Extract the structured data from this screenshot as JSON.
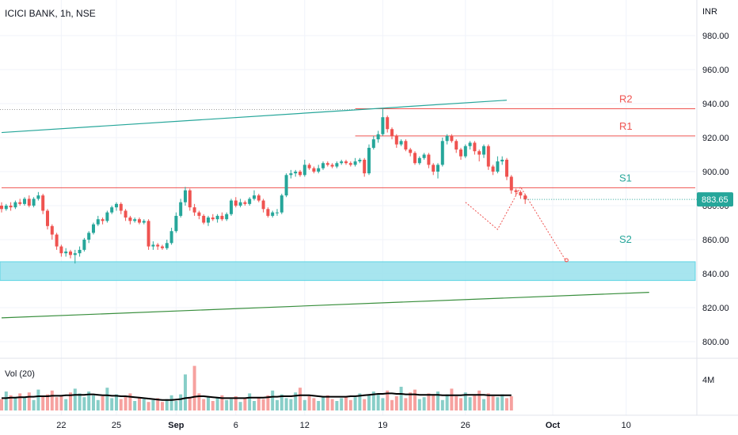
{
  "header": {
    "title": "ICICI BANK, 1h, NSE"
  },
  "colors": {
    "up": "#26a69a",
    "down": "#ef5350",
    "resistance": "#ef5350",
    "support_label": "#26a69a",
    "support_zone": "#9ee3ee",
    "channel_upper": "#26a69a",
    "channel_lower": "#388e3c",
    "projection": "#ef5350",
    "price_badge": "#26a69a",
    "volume_ma": "#000000",
    "grid": "#f0f3fa",
    "axis_text": "#131722"
  },
  "icons": {
    "price_badge": "price-tag-icon"
  },
  "chart_data": {
    "type": "candlestick",
    "title": "ICICI BANK, 1h, NSE",
    "currency": "INR",
    "y_ticks": [
      "980.00",
      "960.00",
      "940.00",
      "920.00",
      "900.00",
      "880.00",
      "860.00",
      "840.00",
      "820.00",
      "800.00"
    ],
    "y_tick_values": [
      980,
      960,
      940,
      920,
      900,
      880,
      860,
      840,
      820,
      800
    ],
    "ylim": [
      795,
      995
    ],
    "x_ticks": [
      "22",
      "25",
      "Sep",
      "6",
      "12",
      "19",
      "26",
      "Oct",
      "10"
    ],
    "x_tick_index": [
      13,
      25,
      38,
      51,
      66,
      83,
      101,
      120,
      136
    ],
    "last_price": "883.65",
    "last_price_value": 883.65,
    "levels": [
      {
        "label": "R2",
        "value": 937,
        "start_index": 77
      },
      {
        "label": "R1",
        "value": 921,
        "start_index": 77
      },
      {
        "label": "S1",
        "value": 890.5,
        "start_index": 0
      },
      {
        "label": "S2",
        "value": 847,
        "start_index": 123
      }
    ],
    "support_zone": [
      836,
      847
    ],
    "channel_upper": {
      "from": [
        0,
        923
      ],
      "to": [
        110,
        942
      ]
    },
    "channel_lower": {
      "from": [
        0,
        814
      ],
      "to": [
        141,
        829
      ]
    },
    "projection_path": [
      [
        101,
        882
      ],
      [
        108,
        866
      ],
      [
        113,
        891
      ],
      [
        123,
        847
      ]
    ],
    "candles": [
      [
        880,
        878,
        882,
        876
      ],
      [
        878,
        880,
        881,
        877
      ],
      [
        880,
        879,
        882,
        877
      ],
      [
        879,
        882,
        883,
        878
      ],
      [
        882,
        881,
        884,
        880
      ],
      [
        881,
        884,
        885,
        880
      ],
      [
        884,
        880,
        886,
        879
      ],
      [
        880,
        884,
        885,
        879
      ],
      [
        884,
        886,
        888,
        883
      ],
      [
        886,
        877,
        887,
        875
      ],
      [
        877,
        868,
        878,
        866
      ],
      [
        868,
        863,
        869,
        860
      ],
      [
        863,
        856,
        864,
        854
      ],
      [
        856,
        852,
        857,
        850
      ],
      [
        852,
        853,
        855,
        850
      ],
      [
        853,
        851,
        854,
        849
      ],
      [
        851,
        852,
        854,
        846
      ],
      [
        852,
        854,
        856,
        850
      ],
      [
        854,
        860,
        861,
        853
      ],
      [
        860,
        864,
        865,
        858
      ],
      [
        864,
        869,
        870,
        863
      ],
      [
        869,
        872,
        874,
        868
      ],
      [
        872,
        871,
        873,
        869
      ],
      [
        871,
        876,
        877,
        870
      ],
      [
        876,
        879,
        880,
        875
      ],
      [
        879,
        881,
        882,
        877
      ],
      [
        881,
        877,
        882,
        875
      ],
      [
        877,
        873,
        878,
        871
      ],
      [
        873,
        871,
        874,
        869
      ],
      [
        871,
        872,
        873,
        870
      ],
      [
        872,
        870,
        873,
        869
      ],
      [
        870,
        871,
        872,
        869
      ],
      [
        871,
        856,
        872,
        854
      ],
      [
        856,
        857,
        859,
        854
      ],
      [
        857,
        856,
        858,
        854
      ],
      [
        856,
        855,
        857,
        854
      ],
      [
        855,
        858,
        860,
        854
      ],
      [
        858,
        865,
        867,
        857
      ],
      [
        865,
        874,
        876,
        864
      ],
      [
        874,
        882,
        884,
        873
      ],
      [
        882,
        889,
        891,
        880
      ],
      [
        889,
        879,
        890,
        877
      ],
      [
        879,
        876,
        881,
        874
      ],
      [
        876,
        874,
        877,
        872
      ],
      [
        874,
        870,
        875,
        869
      ],
      [
        870,
        873,
        874,
        868
      ],
      [
        873,
        872,
        875,
        871
      ],
      [
        872,
        874,
        875,
        870
      ],
      [
        874,
        872,
        876,
        871
      ],
      [
        872,
        875,
        876,
        871
      ],
      [
        875,
        883,
        884,
        874
      ],
      [
        883,
        880,
        885,
        879
      ],
      [
        880,
        882,
        884,
        879
      ],
      [
        882,
        881,
        883,
        880
      ],
      [
        881,
        884,
        885,
        880
      ],
      [
        884,
        886,
        889,
        883
      ],
      [
        886,
        883,
        887,
        882
      ],
      [
        883,
        878,
        884,
        876
      ],
      [
        878,
        874,
        879,
        873
      ],
      [
        874,
        876,
        877,
        873
      ],
      [
        876,
        876,
        878,
        874
      ],
      [
        876,
        886,
        887,
        875
      ],
      [
        886,
        898,
        899,
        885
      ],
      [
        898,
        899,
        901,
        896
      ],
      [
        899,
        900,
        901,
        897
      ],
      [
        900,
        898,
        901,
        897
      ],
      [
        898,
        904,
        907,
        897
      ],
      [
        904,
        902,
        905,
        901
      ],
      [
        902,
        900,
        903,
        899
      ],
      [
        900,
        902,
        904,
        899
      ],
      [
        902,
        905,
        906,
        901
      ],
      [
        905,
        904,
        906,
        903
      ],
      [
        904,
        903,
        905,
        902
      ],
      [
        903,
        905,
        906,
        902
      ],
      [
        905,
        906,
        907,
        904
      ],
      [
        906,
        905,
        907,
        904
      ],
      [
        905,
        904,
        906,
        903
      ],
      [
        904,
        906,
        908,
        903
      ],
      [
        906,
        907,
        908,
        905
      ],
      [
        907,
        899,
        908,
        897
      ],
      [
        899,
        914,
        916,
        898
      ],
      [
        914,
        919,
        921,
        913
      ],
      [
        919,
        922,
        924,
        917
      ],
      [
        922,
        932,
        937,
        921
      ],
      [
        932,
        925,
        933,
        923
      ],
      [
        925,
        921,
        926,
        919
      ],
      [
        921,
        916,
        922,
        914
      ],
      [
        916,
        918,
        919,
        915
      ],
      [
        918,
        913,
        919,
        912
      ],
      [
        913,
        911,
        914,
        909
      ],
      [
        911,
        905,
        912,
        904
      ],
      [
        905,
        908,
        909,
        904
      ],
      [
        908,
        910,
        911,
        907
      ],
      [
        910,
        904,
        911,
        902
      ],
      [
        904,
        900,
        905,
        898
      ],
      [
        900,
        904,
        905,
        896
      ],
      [
        904,
        918,
        920,
        903
      ],
      [
        918,
        921,
        922,
        916
      ],
      [
        921,
        918,
        922,
        917
      ],
      [
        918,
        913,
        919,
        911
      ],
      [
        913,
        909,
        914,
        907
      ],
      [
        909,
        915,
        916,
        908
      ],
      [
        915,
        917,
        918,
        913
      ],
      [
        917,
        912,
        918,
        910
      ],
      [
        912,
        910,
        913,
        906
      ],
      [
        910,
        915,
        916,
        908
      ],
      [
        915,
        903,
        916,
        901
      ],
      [
        903,
        900,
        904,
        898
      ],
      [
        900,
        906,
        909,
        899
      ],
      [
        906,
        907,
        909,
        904
      ],
      [
        907,
        897,
        908,
        895
      ],
      [
        897,
        889,
        898,
        887
      ],
      [
        889,
        888,
        890,
        886
      ],
      [
        888,
        886,
        889,
        884
      ],
      [
        886,
        883.65,
        887,
        881
      ]
    ],
    "volume_label": "Vol (20)",
    "volume_tick": "4M",
    "volume_tick_value": 4000000,
    "volume_max": 5000000,
    "volumes": [
      1.2,
      2.0,
      1.6,
      1.3,
      1.8,
      1.4,
      1.9,
      1.1,
      2.2,
      1.5,
      1.7,
      2.1,
      1.4,
      1.6,
      1.2,
      1.9,
      2.3,
      1.8,
      1.4,
      2.0,
      1.6,
      1.1,
      1.5,
      2.4,
      1.3,
      1.7,
      1.2,
      1.5,
      1.8,
      1.0,
      1.4,
      1.2,
      0.9,
      1.1,
      1.3,
      0.9,
      1.2,
      1.6,
      1.0,
      1.7,
      3.8,
      1.4,
      4.7,
      1.8,
      1.2,
      1.4,
      1.0,
      1.3,
      1.6,
      1.1,
      1.2,
      1.5,
      0.9,
      1.3,
      1.8,
      1.0,
      1.4,
      1.2,
      1.6,
      2.1,
      1.1,
      1.7,
      1.3,
      1.2,
      1.9,
      2.4,
      1.1,
      1.5,
      1.3,
      1.0,
      1.4,
      1.6,
      1.2,
      1.0,
      1.3,
      1.5,
      1.1,
      1.4,
      1.8,
      1.2,
      1.6,
      2.0,
      1.7,
      1.3,
      2.1,
      1.1,
      1.5,
      2.5,
      1.3,
      1.9,
      2.2,
      1.2,
      1.4,
      1.8,
      1.6,
      2.0,
      1.1,
      1.7,
      2.3,
      1.5,
      1.3,
      1.9,
      1.4,
      1.6,
      2.1,
      1.2,
      1.8,
      1.5,
      1.4,
      1.7,
      1.3,
      1.5
    ],
    "volume_ma": [
      1.3,
      1.3,
      1.35,
      1.35,
      1.4,
      1.4,
      1.45,
      1.45,
      1.5,
      1.5,
      1.5,
      1.55,
      1.55,
      1.55,
      1.6,
      1.6,
      1.65,
      1.65,
      1.65,
      1.7,
      1.7,
      1.65,
      1.6,
      1.6,
      1.55,
      1.55,
      1.5,
      1.5,
      1.45,
      1.4,
      1.35,
      1.3,
      1.25,
      1.2,
      1.15,
      1.1,
      1.1,
      1.1,
      1.15,
      1.2,
      1.3,
      1.35,
      1.45,
      1.5,
      1.5,
      1.45,
      1.4,
      1.35,
      1.3,
      1.3,
      1.3,
      1.3,
      1.3,
      1.3,
      1.35,
      1.35,
      1.35,
      1.35,
      1.4,
      1.45,
      1.45,
      1.5,
      1.5,
      1.5,
      1.55,
      1.6,
      1.6,
      1.6,
      1.55,
      1.5,
      1.45,
      1.45,
      1.45,
      1.45,
      1.45,
      1.45,
      1.5,
      1.5,
      1.55,
      1.6,
      1.65,
      1.7,
      1.75,
      1.75,
      1.8,
      1.8,
      1.75,
      1.75,
      1.7,
      1.7,
      1.7,
      1.65,
      1.65,
      1.65,
      1.65,
      1.65,
      1.6,
      1.6,
      1.6,
      1.6,
      1.6,
      1.65,
      1.65,
      1.65,
      1.65,
      1.65,
      1.6,
      1.6,
      1.6,
      1.6,
      1.6,
      1.6
    ]
  }
}
